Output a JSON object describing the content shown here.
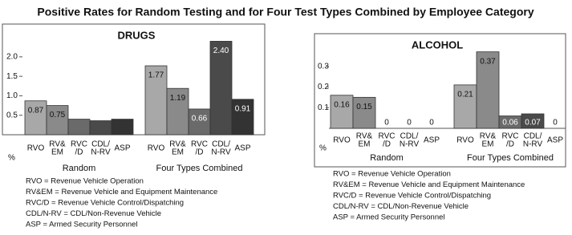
{
  "title": "Positive Rates for Random Testing and for Four Test Types Combined by Employee Category",
  "chart_data": [
    {
      "type": "bar",
      "title": "DRUGS",
      "ylabel": "%",
      "categories": [
        [
          "RVO"
        ],
        [
          "RV&",
          "EM"
        ],
        [
          "RVC",
          "/D"
        ],
        [
          "CDL/",
          "N-RV"
        ],
        [
          "ASP"
        ]
      ],
      "colors": [
        "#a8a8a8",
        "#8a8a8a",
        "#6a6a6a",
        "#4a4a4a",
        "#333333"
      ],
      "groups": [
        {
          "name": "Random",
          "values": [
            0.87,
            0.75,
            0.4,
            0.36,
            0.4
          ],
          "value_labels": [
            "0.87",
            "0.75",
            null,
            null,
            null
          ]
        },
        {
          "name": "Four Types Combined",
          "values": [
            1.77,
            1.19,
            0.66,
            2.4,
            0.91
          ],
          "value_labels": [
            "1.77",
            "1.19",
            "0.66",
            "2.40",
            "0.91"
          ]
        }
      ],
      "ylim": [
        0,
        2.8
      ],
      "yticks": [
        0.5,
        {
          "value": 1,
          "label": "1.0"
        },
        1.5,
        {
          "value": 2,
          "label": "2.0"
        }
      ],
      "notes": [
        "RVO = Revenue Vehicle Operation",
        "RV&EM = Revenue Vehicle and Equipment Maintenance",
        "RVC/D = Revenue Vehicle Control/Dispatching",
        "CDL/N-RV = CDL/Non-Revenue Vehicle",
        "ASP = Armed Security Personnel"
      ]
    },
    {
      "type": "bar",
      "title": "ALCOHOL",
      "ylabel": "%",
      "categories": [
        [
          "RVO"
        ],
        [
          "RV&",
          "EM"
        ],
        [
          "RVC",
          "/D"
        ],
        [
          "CDL/",
          "N-RV"
        ],
        [
          "ASP"
        ]
      ],
      "colors": [
        "#a8a8a8",
        "#8a8a8a",
        "#6a6a6a",
        "#4a4a4a",
        "#333333"
      ],
      "groups": [
        {
          "name": "Random",
          "values": [
            0.16,
            0.15,
            0,
            0,
            0
          ],
          "value_labels": [
            "0.16",
            "0.15",
            "0",
            "0",
            "0"
          ]
        },
        {
          "name": "Four Types Combined",
          "values": [
            0.21,
            0.37,
            0.06,
            0.07,
            0
          ],
          "value_labels": [
            "0.21",
            "0.37",
            "0.06",
            "0.07",
            "0"
          ]
        }
      ],
      "ylim": [
        0,
        0.45
      ],
      "yticks": [
        0.1,
        0.2,
        0.3
      ],
      "notes": [
        "RVO = Revenue Vehicle Operation",
        "RV&EM = Revenue Vehicle and Equipment Maintenance",
        "RVC/D = Revenue Vehicle Control/Dispatching",
        "CDL/N-RV = CDL/Non-Revenue Vehicle",
        "ASP = Armed Security Personnel"
      ]
    }
  ]
}
